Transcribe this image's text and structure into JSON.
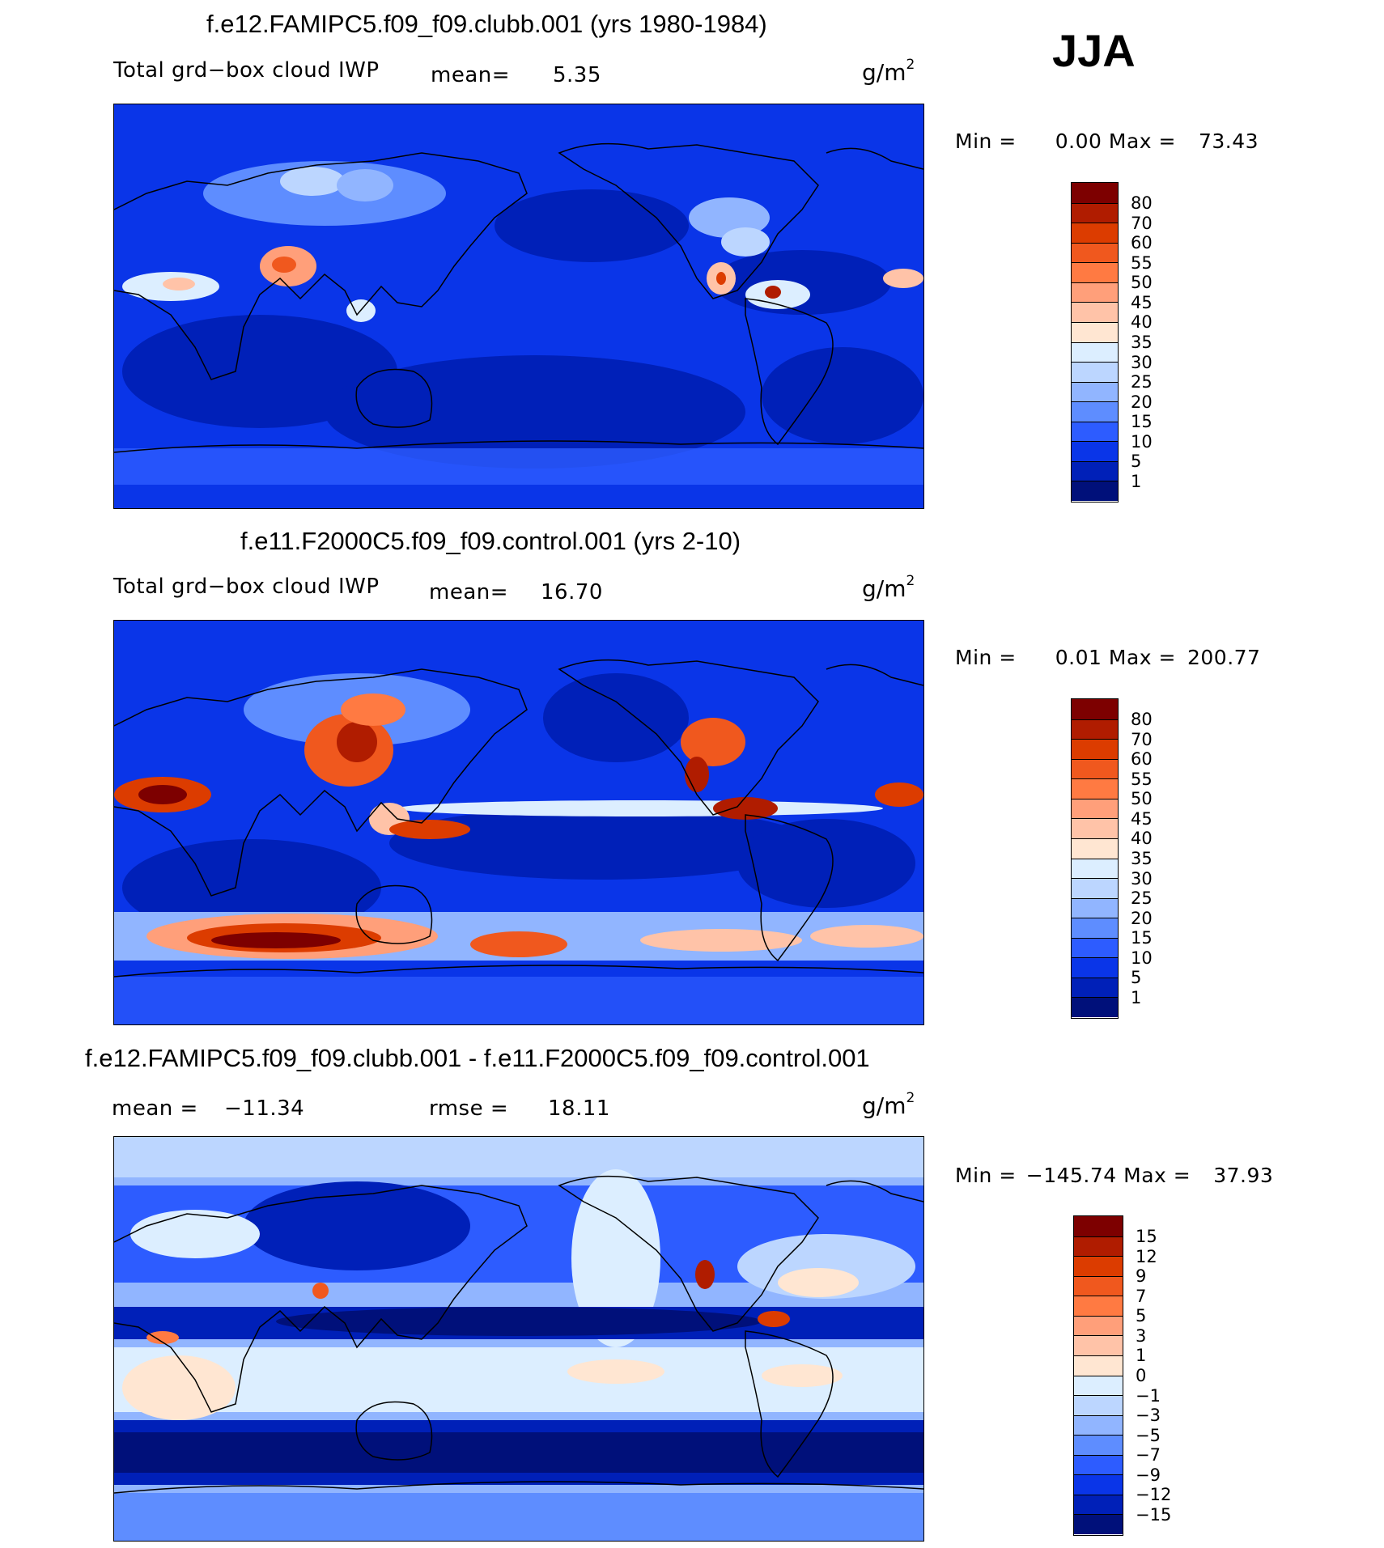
{
  "season": "JJA",
  "panels": [
    {
      "title": "f.e12.FAMIPC5.f09_f09.clubb.001 (yrs 1980-1984)",
      "field_label": "Total grd−box cloud IWP",
      "mean_label": "mean=",
      "mean_value": "5.35",
      "units": "g/m",
      "units_exp": "2",
      "min_label": "Min =",
      "min_value": "0.00",
      "max_label": "Max =",
      "max_value": "73.43"
    },
    {
      "title": "f.e11.F2000C5.f09_f09.control.001 (yrs 2-10)",
      "field_label": "Total grd−box cloud IWP",
      "mean_label": "mean=",
      "mean_value": "16.70",
      "units": "g/m",
      "units_exp": "2",
      "min_label": "Min =",
      "min_value": "0.01",
      "max_label": "Max =",
      "max_value": "200.77"
    },
    {
      "title": "f.e12.FAMIPC5.f09_f09.clubb.001 - f.e11.F2000C5.f09_f09.control.001",
      "mean_label": "mean =",
      "mean_value": "−11.34",
      "rmse_label": "rmse =",
      "rmse_value": "18.11",
      "units": "g/m",
      "units_exp": "2",
      "min_label": "Min =",
      "min_value": "−145.74",
      "max_label": "Max =",
      "max_value": "37.93"
    }
  ],
  "colorbars": {
    "absolute": {
      "labels": [
        "80",
        "70",
        "60",
        "55",
        "50",
        "45",
        "40",
        "35",
        "30",
        "25",
        "20",
        "15",
        "10",
        "5",
        "1"
      ],
      "colors": [
        "#7d0000",
        "#b01c00",
        "#dc3c00",
        "#f0581e",
        "#ff7a42",
        "#ff9f7a",
        "#ffc3a8",
        "#ffe6d2",
        "#dceeff",
        "#bcd6ff",
        "#91b5ff",
        "#5e8dff",
        "#2d5cff",
        "#0a35e8",
        "#0020b8",
        "#00107a"
      ]
    },
    "difference": {
      "labels": [
        "15",
        "12",
        "9",
        "7",
        "5",
        "3",
        "1",
        "0",
        "−1",
        "−3",
        "−5",
        "−7",
        "−9",
        "−12",
        "−15"
      ],
      "colors": [
        "#7d0000",
        "#b01c00",
        "#dc3c00",
        "#f0581e",
        "#ff7a42",
        "#ff9f7a",
        "#ffc3a8",
        "#ffe6d2",
        "#dceeff",
        "#bcd6ff",
        "#91b5ff",
        "#5e8dff",
        "#2d5cff",
        "#0a35e8",
        "#0020b8",
        "#00107a"
      ]
    }
  }
}
